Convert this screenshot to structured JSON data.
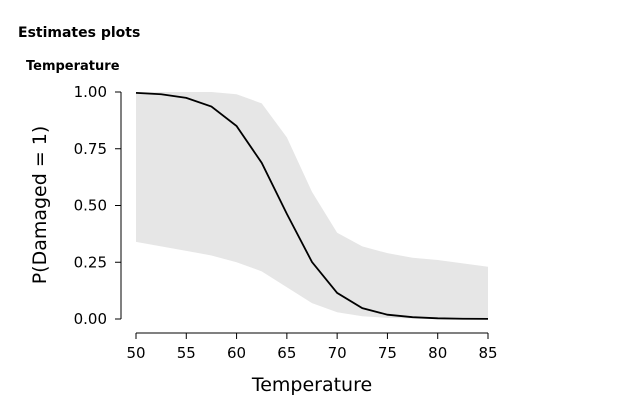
{
  "header": "Estimates plots",
  "chart_data": {
    "type": "line",
    "title": "Temperature",
    "xlabel": "Temperature",
    "ylabel": "P(Damaged = 1)",
    "x": [
      50,
      52.5,
      55,
      57.5,
      60,
      62.5,
      65,
      67.5,
      70,
      72.5,
      75,
      77.5,
      80,
      82.5,
      85
    ],
    "values": [
      0.996,
      0.99,
      0.974,
      0.936,
      0.85,
      0.688,
      0.463,
      0.251,
      0.115,
      0.048,
      0.019,
      0.008,
      0.003,
      0.001,
      0.0005
    ],
    "ci_lower": [
      0.34,
      0.32,
      0.3,
      0.28,
      0.25,
      0.21,
      0.14,
      0.07,
      0.03,
      0.012,
      0.005,
      0.002,
      0.001,
      0.0005,
      0.0002
    ],
    "ci_upper": [
      1,
      1,
      1,
      1,
      0.99,
      0.95,
      0.8,
      0.56,
      0.38,
      0.32,
      0.29,
      0.27,
      0.26,
      0.245,
      0.23
    ],
    "color": "#000000",
    "band_color": "#e6e6e6",
    "xlim": [
      50,
      85
    ],
    "xticks": [
      50,
      55,
      60,
      65,
      70,
      75,
      80,
      85
    ],
    "ylim": [
      0,
      1
    ],
    "yticks": [
      {
        "value": 0,
        "label": "0.00"
      },
      {
        "value": 0.25,
        "label": "0.25"
      },
      {
        "value": 0.5,
        "label": "0.50"
      },
      {
        "value": 0.75,
        "label": "0.75"
      },
      {
        "value": 1,
        "label": "1.00"
      }
    ]
  }
}
